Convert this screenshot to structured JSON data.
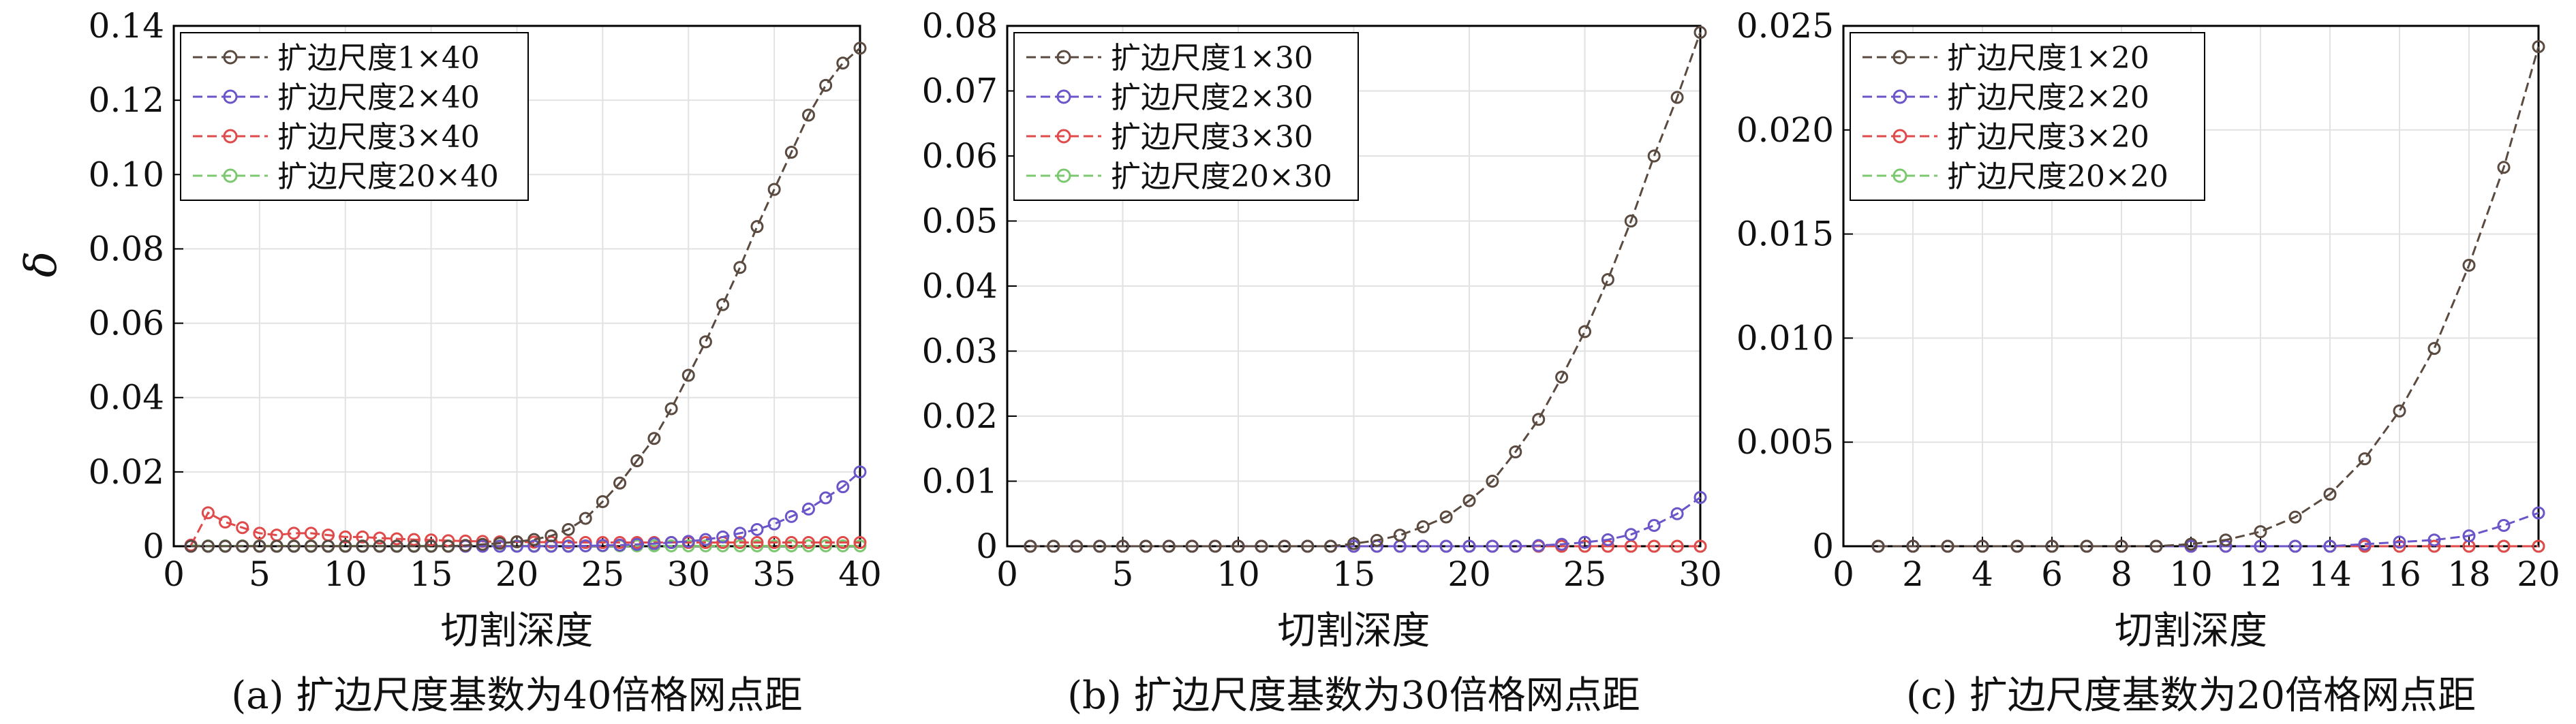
{
  "figure": {
    "ylabel": "δ",
    "colors": {
      "series": [
        "#5a4a40",
        "#6b55c8",
        "#e04a4a",
        "#7cc870"
      ],
      "grid": "#e2e2e2",
      "axis": "#000000"
    }
  },
  "chart_data": [
    {
      "type": "line",
      "caption": "(a) 扩边尺度基数为40倍格网点距",
      "xlabel": "切割深度",
      "ylabel": "δ",
      "xlim": [
        0,
        40
      ],
      "ylim": [
        0,
        0.14
      ],
      "xticks": [
        "0",
        "5",
        "10",
        "15",
        "20",
        "25",
        "30",
        "35",
        "40"
      ],
      "yticks": [
        "0",
        "0.02",
        "0.04",
        "0.06",
        "0.08",
        "0.10",
        "0.12",
        "0.14"
      ],
      "grid": true,
      "legend_position": "top-left",
      "x": [
        1,
        2,
        3,
        4,
        5,
        6,
        7,
        8,
        9,
        10,
        11,
        12,
        13,
        14,
        15,
        16,
        17,
        18,
        19,
        20,
        21,
        22,
        23,
        24,
        25,
        26,
        27,
        28,
        29,
        30,
        31,
        32,
        33,
        34,
        35,
        36,
        37,
        38,
        39,
        40
      ],
      "series": [
        {
          "name": "扩边尺度1×40",
          "values": [
            0,
            0,
            0,
            0,
            0,
            0,
            0,
            0,
            0,
            0,
            0,
            0,
            0,
            0,
            0,
            0,
            0.0002,
            0.0005,
            0.0008,
            0.0012,
            0.0018,
            0.0028,
            0.0045,
            0.0075,
            0.012,
            0.017,
            0.023,
            0.029,
            0.037,
            0.046,
            0.055,
            0.065,
            0.075,
            0.086,
            0.096,
            0.106,
            0.116,
            0.124,
            0.13,
            0.134
          ]
        },
        {
          "name": "扩边尺度2×40",
          "values": [
            0,
            0,
            0,
            0,
            0,
            0,
            0,
            0,
            0,
            0,
            0,
            0,
            0,
            0,
            0,
            0,
            0,
            0,
            0,
            0,
            0,
            0,
            0,
            0.0001,
            0.0002,
            0.0003,
            0.0005,
            0.0007,
            0.001,
            0.0013,
            0.0018,
            0.0025,
            0.0035,
            0.0045,
            0.006,
            0.008,
            0.01,
            0.013,
            0.016,
            0.02
          ]
        },
        {
          "name": "扩边尺度3×40",
          "values": [
            0.0003,
            0.009,
            0.0065,
            0.005,
            0.0035,
            0.003,
            0.0035,
            0.0035,
            0.003,
            0.0025,
            0.0025,
            0.0022,
            0.002,
            0.0018,
            0.0017,
            0.0015,
            0.0014,
            0.0013,
            0.0012,
            0.0012,
            0.0011,
            0.0011,
            0.001,
            0.001,
            0.001,
            0.001,
            0.001,
            0.001,
            0.001,
            0.001,
            0.001,
            0.001,
            0.001,
            0.001,
            0.001,
            0.001,
            0.001,
            0.001,
            0.001,
            0.001
          ]
        },
        {
          "name": "扩边尺度20×40",
          "values": [
            0.0002,
            0.0001,
            0.0001,
            0.0001,
            0.0001,
            0.0001,
            0.0001,
            0.0001,
            0.0001,
            0.0001,
            0.0001,
            0.0001,
            0.0001,
            0.0001,
            0.0001,
            0.0001,
            0.0001,
            0.0001,
            0.0001,
            0.0001,
            0.0001,
            0.0001,
            0.0001,
            0.0001,
            0.0001,
            0.0001,
            0.0001,
            0.0001,
            0.0001,
            0.0001,
            0.0001,
            0.0001,
            0.0001,
            0.0001,
            0.0001,
            0.0001,
            0.0001,
            0.0001,
            0.0001,
            0.0001
          ]
        }
      ]
    },
    {
      "type": "line",
      "caption": "(b) 扩边尺度基数为30倍格网点距",
      "xlabel": "切割深度",
      "xlim": [
        0,
        30
      ],
      "ylim": [
        0,
        0.08
      ],
      "xticks": [
        "0",
        "5",
        "10",
        "15",
        "20",
        "25",
        "30"
      ],
      "yticks": [
        "0",
        "0.01",
        "0.02",
        "0.03",
        "0.04",
        "0.05",
        "0.06",
        "0.07",
        "0.08"
      ],
      "grid": true,
      "legend_position": "top-left",
      "x": [
        1,
        2,
        3,
        4,
        5,
        6,
        7,
        8,
        9,
        10,
        11,
        12,
        13,
        14,
        15,
        16,
        17,
        18,
        19,
        20,
        21,
        22,
        23,
        24,
        25,
        26,
        27,
        28,
        29,
        30
      ],
      "series": [
        {
          "name": "扩边尺度1×30",
          "values": [
            0,
            0,
            0,
            0,
            0,
            0,
            0,
            0,
            0,
            0,
            0,
            0,
            0,
            0,
            0.0004,
            0.0009,
            0.0017,
            0.003,
            0.0045,
            0.007,
            0.01,
            0.0145,
            0.0195,
            0.026,
            0.033,
            0.041,
            0.05,
            0.06,
            0.069,
            0.079
          ]
        },
        {
          "name": "扩边尺度2×30",
          "values": [
            0,
            0,
            0,
            0,
            0,
            0,
            0,
            0,
            0,
            0,
            0,
            0,
            0,
            0,
            0,
            0,
            0,
            0,
            0,
            0,
            0,
            0,
            0.0001,
            0.0003,
            0.0006,
            0.001,
            0.0018,
            0.0032,
            0.005,
            0.0075
          ]
        },
        {
          "name": "扩边尺度3×30",
          "values": [
            0,
            0,
            0,
            0,
            0,
            0,
            0,
            0,
            0,
            0,
            0,
            0,
            0,
            0,
            0,
            0,
            0,
            0,
            0,
            0,
            0,
            0,
            0,
            0,
            0,
            0,
            0,
            0,
            0,
            0
          ]
        },
        {
          "name": "扩边尺度20×30",
          "values": [
            0,
            0,
            0,
            0,
            0,
            0,
            0,
            0,
            0,
            0,
            0,
            0,
            0,
            0,
            0,
            0,
            0,
            0,
            0,
            0,
            0,
            0,
            0,
            0,
            0,
            0,
            0,
            0,
            0,
            0
          ]
        }
      ]
    },
    {
      "type": "line",
      "caption": "(c) 扩边尺度基数为20倍格网点距",
      "xlabel": "切割深度",
      "xlim": [
        0,
        20
      ],
      "ylim": [
        0,
        0.025
      ],
      "xticks": [
        "0",
        "2",
        "4",
        "6",
        "8",
        "10",
        "12",
        "14",
        "16",
        "18",
        "20"
      ],
      "yticks": [
        "0",
        "0.005",
        "0.010",
        "0.015",
        "0.020",
        "0.025"
      ],
      "grid": true,
      "legend_position": "top-left",
      "x": [
        1,
        2,
        3,
        4,
        5,
        6,
        7,
        8,
        9,
        10,
        11,
        12,
        13,
        14,
        15,
        16,
        17,
        18,
        19,
        20
      ],
      "series": [
        {
          "name": "扩边尺度1×20",
          "values": [
            0,
            0,
            0,
            0,
            0,
            0,
            0,
            0,
            0,
            0.0001,
            0.0003,
            0.0007,
            0.0014,
            0.0025,
            0.0042,
            0.0065,
            0.0095,
            0.0135,
            0.0182,
            0.024
          ]
        },
        {
          "name": "扩边尺度2×20",
          "values": [
            0,
            0,
            0,
            0,
            0,
            0,
            0,
            0,
            0,
            0,
            0,
            0,
            0,
            0,
            0.0001,
            0.0002,
            0.0003,
            0.0005,
            0.001,
            0.0016
          ]
        },
        {
          "name": "扩边尺度3×20",
          "values": [
            0,
            0,
            0,
            0,
            0,
            0,
            0,
            0,
            0,
            0,
            0,
            0,
            0,
            0,
            0,
            0,
            0,
            0,
            0,
            0
          ]
        },
        {
          "name": "扩边尺度20×20",
          "values": [
            0,
            0,
            0,
            0,
            0,
            0,
            0,
            0,
            0,
            0,
            0,
            0,
            0,
            0,
            0,
            0,
            0,
            0,
            0,
            0
          ]
        }
      ]
    }
  ]
}
